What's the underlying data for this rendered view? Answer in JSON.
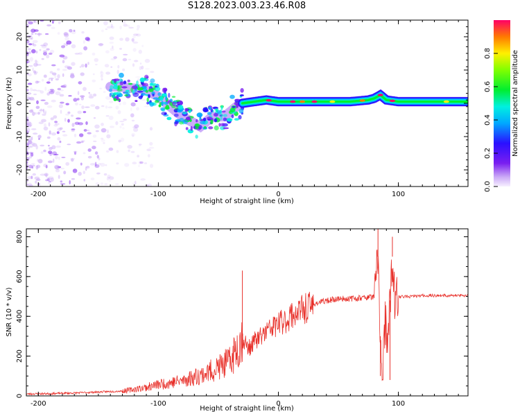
{
  "title": "S128.2023.003.23.46.R08",
  "chart_data": [
    {
      "type": "heatmap",
      "xlabel": "Height of straight line (km)",
      "ylabel": "Frequency (Hz)",
      "xlim": [
        -210,
        158
      ],
      "ylim": [
        -25,
        25
      ],
      "xticks": [
        -200,
        -100,
        0,
        100
      ],
      "yticks": [
        -20,
        -10,
        0,
        10,
        20
      ],
      "colorbar": {
        "label": "Normalized spectral amplitude",
        "range": [
          0,
          1
        ],
        "ticks": [
          "0.0",
          "0.2",
          "0.4",
          "0.6",
          "0.8"
        ]
      },
      "ridge": {
        "x": [
          -135,
          -120,
          -110,
          -100,
          -90,
          -80,
          -70,
          -65,
          -55,
          -45,
          -35,
          -30,
          -20,
          -10,
          0,
          10,
          20,
          40,
          60,
          75,
          80,
          85,
          90,
          100,
          120,
          140,
          158
        ],
        "y": [
          5,
          4.5,
          4,
          2,
          -1,
          -4,
          -6,
          -7,
          -4,
          -4,
          -1,
          0,
          0.5,
          1,
          0.5,
          0.5,
          0.5,
          0.5,
          0.5,
          1,
          1.5,
          2.5,
          1,
          0.5,
          0.5,
          0.5,
          0.5
        ]
      }
    },
    {
      "type": "line",
      "xlabel": "Height of straight line (km)",
      "ylabel": "SNR (10 * v/v)",
      "xlim": [
        -210,
        158
      ],
      "ylim": [
        0,
        840
      ],
      "xticks": [
        -200,
        -100,
        0,
        100
      ],
      "yticks": [
        0,
        200,
        400,
        600,
        800
      ],
      "color": "#e8302a",
      "series": [
        {
          "x": [
            -210,
            -190,
            -170,
            -150,
            -130,
            -120,
            -110,
            -100,
            -90,
            -80,
            -70,
            -60,
            -50,
            -40,
            -35,
            -30,
            -25,
            -20,
            -15,
            -10,
            -5,
            0,
            5,
            10,
            20,
            30,
            40,
            50,
            60,
            70,
            80,
            83,
            85,
            87,
            89,
            91,
            93,
            95,
            97,
            100,
            110,
            120,
            130,
            140,
            150,
            158
          ],
          "y": [
            10,
            12,
            15,
            20,
            25,
            35,
            45,
            60,
            70,
            80,
            100,
            120,
            150,
            180,
            250,
            300,
            240,
            280,
            300,
            330,
            350,
            370,
            380,
            410,
            440,
            465,
            480,
            490,
            490,
            495,
            500,
            700,
            300,
            120,
            400,
            230,
            480,
            700,
            480,
            500,
            500,
            505,
            505,
            505,
            505,
            505
          ]
        }
      ],
      "spikes": [
        {
          "x": -30,
          "y": 630
        },
        {
          "x": 83,
          "y": 840
        },
        {
          "x": 85,
          "y": 100
        },
        {
          "x": 93,
          "y": 80
        },
        {
          "x": 95,
          "y": 800
        }
      ]
    }
  ]
}
